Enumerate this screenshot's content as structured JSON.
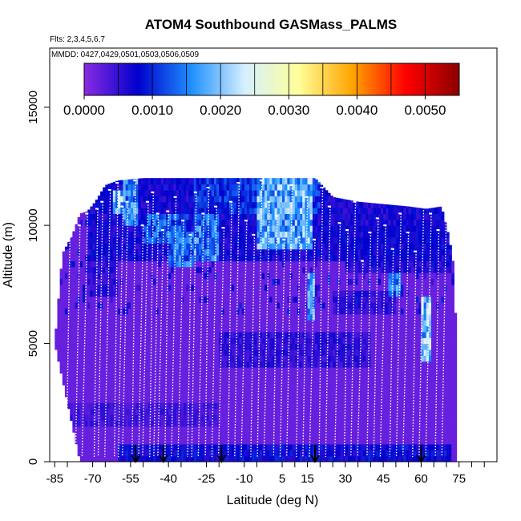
{
  "chart_data": {
    "type": "heatmap",
    "title": "ATOM4 Southbound GASMass_PALMS",
    "subtitle_flights": "Flts: 2,3,4,5,6,7",
    "subtitle_dates": "MMDD: 0427,0429,0501,0503,0506,0509",
    "xlabel": "Latitude (deg N)",
    "ylabel": "Altitude (m)",
    "xlim": [
      -87,
      90
    ],
    "ylim": [
      0,
      17500
    ],
    "x_ticks": [
      -85,
      -70,
      -55,
      -40,
      -25,
      -10,
      5,
      15,
      30,
      45,
      60,
      75
    ],
    "x_tick_labels": [
      "-85",
      "-70",
      "-55",
      "-40",
      "-25",
      "-10",
      "5",
      "15",
      "30",
      "45",
      "60",
      "75"
    ],
    "x_minor_ticks": [
      -80,
      -65,
      -50,
      -35,
      -20,
      -5,
      10,
      20,
      25,
      35,
      40,
      50,
      55,
      65,
      70,
      80,
      85
    ],
    "y_ticks": [
      0,
      5000,
      10000,
      15000
    ],
    "y_tick_labels": [
      "0",
      "5000",
      "10000",
      "15000"
    ],
    "colorbar": {
      "min": 0.0,
      "max": 0.0055,
      "ticks": [
        0.0,
        0.001,
        0.002,
        0.003,
        0.004,
        0.005
      ],
      "tick_labels": [
        "0.0000",
        "0.0010",
        "0.0020",
        "0.0030",
        "0.0040",
        "0.0050"
      ],
      "colors": [
        "#8a2be2",
        "#0000cd",
        "#1e90ff",
        "#d6f0ff",
        "#ffff99",
        "#ffa500",
        "#ff0000",
        "#8b0000"
      ]
    },
    "background_value": 0.0002,
    "coverage_envelope": {
      "lat": [
        -85,
        -82,
        -78,
        -75,
        -72,
        -69,
        -65,
        -60,
        -55,
        -50,
        -45,
        -40,
        -30,
        -20,
        -10,
        0,
        10,
        18,
        25,
        35,
        45,
        55,
        62,
        68,
        71,
        72.5,
        74
      ],
      "top_alt": [
        5000,
        8800,
        9600,
        10500,
        10600,
        11000,
        11700,
        11900,
        11950,
        12000,
        12000,
        12000,
        12000,
        12000,
        12000,
        12000,
        12000,
        12000,
        11200,
        11000,
        10900,
        10800,
        10700,
        10800,
        9500,
        8500,
        5200
      ],
      "bottom_alt": [
        5000,
        3500,
        1500,
        0,
        0,
        0,
        0,
        0,
        0,
        0,
        0,
        0,
        0,
        0,
        0,
        0,
        0,
        0,
        0,
        0,
        0,
        0,
        0,
        0,
        0,
        0,
        0
      ]
    },
    "anomalies": [
      {
        "lat_range": [
          -72,
          72
        ],
        "alt_range": [
          8500,
          12000
        ],
        "value": 0.0008
      },
      {
        "lat_range": [
          -30,
          20
        ],
        "alt_range": [
          10500,
          12000
        ],
        "value": 0.0012
      },
      {
        "lat_range": [
          -5,
          17
        ],
        "alt_range": [
          9000,
          12000
        ],
        "value": 0.0021
      },
      {
        "lat_range": [
          -50,
          -32
        ],
        "alt_range": [
          9200,
          10500
        ],
        "value": 0.0015
      },
      {
        "lat_range": [
          -58,
          -52
        ],
        "alt_range": [
          10000,
          11900
        ],
        "value": 0.0018
      },
      {
        "lat_range": [
          -62,
          -58
        ],
        "alt_range": [
          10300,
          11500
        ],
        "value": 0.0022
      },
      {
        "lat_range": [
          -72,
          -60
        ],
        "alt_range": [
          7000,
          9500
        ],
        "value": 0.0006
      },
      {
        "lat_range": [
          -30,
          -20
        ],
        "alt_range": [
          8500,
          10300
        ],
        "value": 0.0017
      },
      {
        "lat_range": [
          -40,
          -30
        ],
        "alt_range": [
          8200,
          9600
        ],
        "value": 0.0016
      },
      {
        "lat_range": [
          15,
          18
        ],
        "alt_range": [
          6000,
          8000
        ],
        "value": 0.0019
      },
      {
        "lat_range": [
          47,
          52
        ],
        "alt_range": [
          6800,
          8000
        ],
        "value": 0.0017
      },
      {
        "lat_range": [
          60,
          64
        ],
        "alt_range": [
          4200,
          6800
        ],
        "value": 0.0023
      },
      {
        "lat_range": [
          -20,
          40
        ],
        "alt_range": [
          4000,
          5500
        ],
        "value": 0.0006
      },
      {
        "lat_range": [
          30,
          72
        ],
        "alt_range": [
          8000,
          9800
        ],
        "value": 0.0007
      },
      {
        "lat_range": [
          -80,
          -20
        ],
        "alt_range": [
          1500,
          2500
        ],
        "value": 0.0005
      },
      {
        "lat_range": [
          -60,
          72
        ],
        "alt_range": [
          0,
          600
        ],
        "value": 0.0009
      },
      {
        "lat_range": [
          25,
          50
        ],
        "alt_range": [
          6200,
          7200
        ],
        "value": 0.0006
      }
    ],
    "flight_profiles_lat": [
      -79,
      -75,
      -72,
      -68,
      -66,
      -63,
      -60,
      -58,
      -56,
      -53,
      -50,
      -48,
      -46,
      -44,
      -42,
      -40,
      -37,
      -34,
      -31,
      -29,
      -26,
      -24,
      -21,
      -18,
      -15,
      -12,
      -9,
      -6,
      -3,
      0,
      3,
      6,
      9,
      12,
      15,
      18,
      21,
      24,
      28,
      31,
      34,
      37,
      40,
      43,
      46,
      49,
      52,
      55,
      58,
      61,
      64,
      67,
      70
    ],
    "flight_profiles_top": [
      9500,
      10000,
      10500,
      10700,
      11000,
      11500,
      11800,
      10800,
      11000,
      11900,
      10000,
      11000,
      11400,
      10500,
      9800,
      10600,
      11200,
      10200,
      9600,
      11400,
      10500,
      11600,
      10800,
      9900,
      11000,
      11800,
      10200,
      9600,
      11900,
      11000,
      10400,
      9400,
      11700,
      9500,
      11200,
      9400,
      11600,
      10800,
      10100,
      9800,
      11000,
      8500,
      9700,
      10300,
      10000,
      9000,
      10500,
      9700,
      8900,
      11000,
      10500,
      9800,
      11000
    ],
    "arrows_lat": [
      -53,
      -42,
      -19,
      18,
      60
    ]
  }
}
